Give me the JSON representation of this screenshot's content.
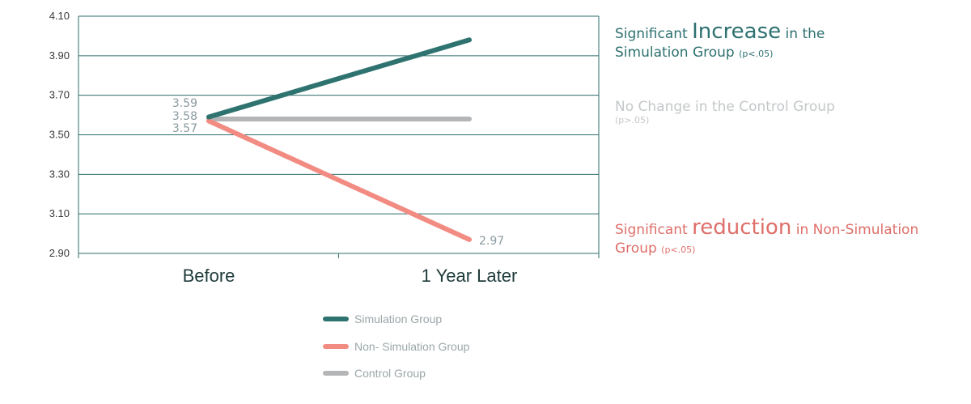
{
  "chart_data": {
    "type": "line",
    "categories": [
      "Before",
      "1 Year Later"
    ],
    "series": [
      {
        "name": "Simulation Group",
        "values": [
          3.59,
          3.98
        ],
        "color": "#2e7370"
      },
      {
        "name": "Non- Simulation Group",
        "values": [
          3.57,
          2.97
        ],
        "color": "#f28b82"
      },
      {
        "name": "Control Group",
        "values": [
          3.58,
          3.58
        ],
        "color": "#b3b5b7"
      }
    ],
    "ylim": [
      2.9,
      4.1
    ],
    "yticks": [
      "2.90",
      "3.10",
      "3.30",
      "3.50",
      "3.70",
      "3.90",
      "4.10"
    ],
    "data_labels": [
      "3.59",
      "3.58",
      "3.57",
      "2.97"
    ],
    "grid": "horizontal",
    "legend_position": "bottom"
  },
  "annotations": {
    "simulation": {
      "pre": "Significant ",
      "emph": "Increase",
      "mid": " in the",
      "line2": "Simulation Group ",
      "p": "(p<.05)"
    },
    "control": {
      "line1": "No Change in the Control Group",
      "p": "(p>.05)"
    },
    "non_simulation": {
      "pre": "Significant ",
      "emph": "reduction",
      "mid": " in Non-Simulation",
      "line2": "Group ",
      "p": "(p<.05)"
    }
  }
}
